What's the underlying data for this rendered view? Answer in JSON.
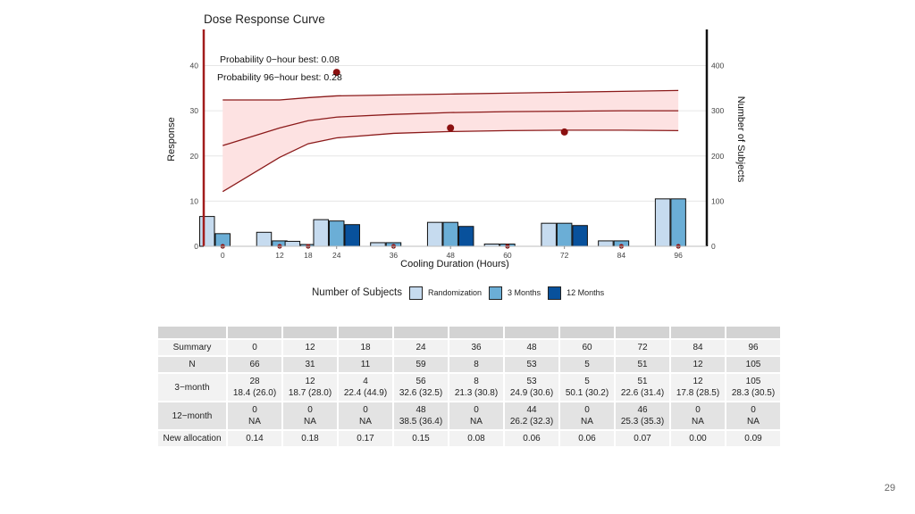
{
  "chart_data": {
    "type": "bar",
    "title": "Dose Response Curve",
    "xlabel": "Cooling Duration (Hours)",
    "ylabel": "Response",
    "ylabel_right": "Number of Subjects",
    "x": [
      0,
      12,
      18,
      24,
      36,
      48,
      60,
      72,
      84,
      96
    ],
    "xlim": [
      -4,
      102
    ],
    "ylim": [
      0,
      48
    ],
    "ylim_right": [
      0,
      480
    ],
    "yticks": [
      0,
      10,
      20,
      30,
      40
    ],
    "yticks_right": [
      0,
      100,
      200,
      300,
      400
    ],
    "annotations": [
      "Probability 0−hour best: 0.08",
      "Probability 96−hour best: 0.28"
    ],
    "curve": {
      "x": [
        0,
        12,
        18,
        24,
        36,
        48,
        60,
        72,
        84,
        96
      ],
      "mean": [
        22.3,
        26.2,
        27.8,
        28.6,
        29.2,
        29.6,
        29.8,
        29.9,
        30.0,
        30.0
      ],
      "lower": [
        12.1,
        19.7,
        22.7,
        24.0,
        25.0,
        25.4,
        25.6,
        25.7,
        25.7,
        25.6
      ],
      "upper": [
        32.4,
        32.4,
        32.9,
        33.3,
        33.5,
        33.7,
        33.9,
        34.1,
        34.3,
        34.5
      ]
    },
    "observed": {
      "x": [
        0,
        12,
        18,
        24,
        36,
        48,
        60,
        72,
        84,
        96
      ],
      "y": [
        0,
        0,
        0,
        38.5,
        0,
        26.2,
        0,
        25.3,
        0,
        0
      ]
    },
    "series": [
      {
        "name": "Randomization",
        "color": "#c6dbef",
        "values": [
          66,
          31,
          11,
          59,
          8,
          53,
          5,
          51,
          12,
          105
        ]
      },
      {
        "name": "3 Months",
        "color": "#6baed6",
        "values": [
          28,
          12,
          4,
          56,
          8,
          53,
          5,
          51,
          12,
          105
        ]
      },
      {
        "name": "12 Months",
        "color": "#08519c",
        "values": [
          0,
          0,
          0,
          48,
          0,
          44,
          0,
          46,
          0,
          0
        ]
      }
    ],
    "legend_title": "Number of Subjects",
    "legend_position": "bottom",
    "grid": true
  },
  "colors": {
    "ribbon": "#fde2e2",
    "line": "#8b1a1a",
    "point": "#8b1010",
    "left_axis": "#a11c1c",
    "right_axis": "#111111"
  },
  "table": {
    "header": "Summary",
    "columns": [
      "0",
      "12",
      "18",
      "24",
      "36",
      "48",
      "60",
      "72",
      "84",
      "96"
    ],
    "rows": [
      {
        "label": "N",
        "cells": [
          [
            "66"
          ],
          [
            "31"
          ],
          [
            "11"
          ],
          [
            "59"
          ],
          [
            "8"
          ],
          [
            "53"
          ],
          [
            "5"
          ],
          [
            "51"
          ],
          [
            "12"
          ],
          [
            "105"
          ]
        ]
      },
      {
        "label": "3−month",
        "cells": [
          [
            "28",
            "18.4 (26.0)"
          ],
          [
            "12",
            "18.7 (28.0)"
          ],
          [
            "4",
            "22.4 (44.9)"
          ],
          [
            "56",
            "32.6 (32.5)"
          ],
          [
            "8",
            "21.3 (30.8)"
          ],
          [
            "53",
            "24.9 (30.6)"
          ],
          [
            "5",
            "50.1 (30.2)"
          ],
          [
            "51",
            "22.6 (31.4)"
          ],
          [
            "12",
            "17.8 (28.5)"
          ],
          [
            "105",
            "28.3 (30.5)"
          ]
        ]
      },
      {
        "label": "12−month",
        "cells": [
          [
            "0",
            "NA"
          ],
          [
            "0",
            "NA"
          ],
          [
            "0",
            "NA"
          ],
          [
            "48",
            "38.5 (36.4)"
          ],
          [
            "0",
            "NA"
          ],
          [
            "44",
            "26.2 (32.3)"
          ],
          [
            "0",
            "NA"
          ],
          [
            "46",
            "25.3 (35.3)"
          ],
          [
            "0",
            "NA"
          ],
          [
            "0",
            "NA"
          ]
        ]
      },
      {
        "label": "New allocation",
        "cells": [
          [
            "0.14"
          ],
          [
            "0.18"
          ],
          [
            "0.17"
          ],
          [
            "0.15"
          ],
          [
            "0.08"
          ],
          [
            "0.06"
          ],
          [
            "0.06"
          ],
          [
            "0.07"
          ],
          [
            "0.00"
          ],
          [
            "0.09"
          ]
        ]
      }
    ]
  },
  "page_number": "29"
}
